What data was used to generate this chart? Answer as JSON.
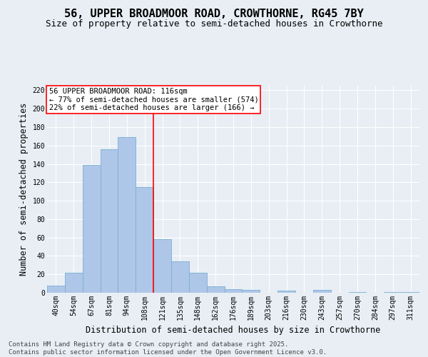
{
  "title": "56, UPPER BROADMOOR ROAD, CROWTHORNE, RG45 7BY",
  "subtitle": "Size of property relative to semi-detached houses in Crowthorne",
  "xlabel": "Distribution of semi-detached houses by size in Crowthorne",
  "ylabel": "Number of semi-detached properties",
  "categories": [
    "40sqm",
    "54sqm",
    "67sqm",
    "81sqm",
    "94sqm",
    "108sqm",
    "121sqm",
    "135sqm",
    "148sqm",
    "162sqm",
    "176sqm",
    "189sqm",
    "203sqm",
    "216sqm",
    "230sqm",
    "243sqm",
    "257sqm",
    "270sqm",
    "284sqm",
    "297sqm",
    "311sqm"
  ],
  "values": [
    8,
    22,
    139,
    156,
    169,
    115,
    58,
    34,
    22,
    7,
    4,
    3,
    0,
    2,
    0,
    3,
    0,
    1,
    0,
    1,
    1
  ],
  "bar_color": "#aec6e8",
  "bar_edge_color": "#7bafd4",
  "annotation_text": "56 UPPER BROADMOOR ROAD: 116sqm\n← 77% of semi-detached houses are smaller (574)\n22% of semi-detached houses are larger (166) →",
  "footnote": "Contains HM Land Registry data © Crown copyright and database right 2025.\nContains public sector information licensed under the Open Government Licence v3.0.",
  "background_color": "#e8eef4",
  "grid_color": "#ffffff",
  "ylim": [
    0,
    225
  ],
  "yticks": [
    0,
    20,
    40,
    60,
    80,
    100,
    120,
    140,
    160,
    180,
    200,
    220
  ],
  "title_fontsize": 11,
  "subtitle_fontsize": 9,
  "axis_label_fontsize": 8.5,
  "tick_fontsize": 7,
  "annot_fontsize": 7.5,
  "footnote_fontsize": 6.5
}
